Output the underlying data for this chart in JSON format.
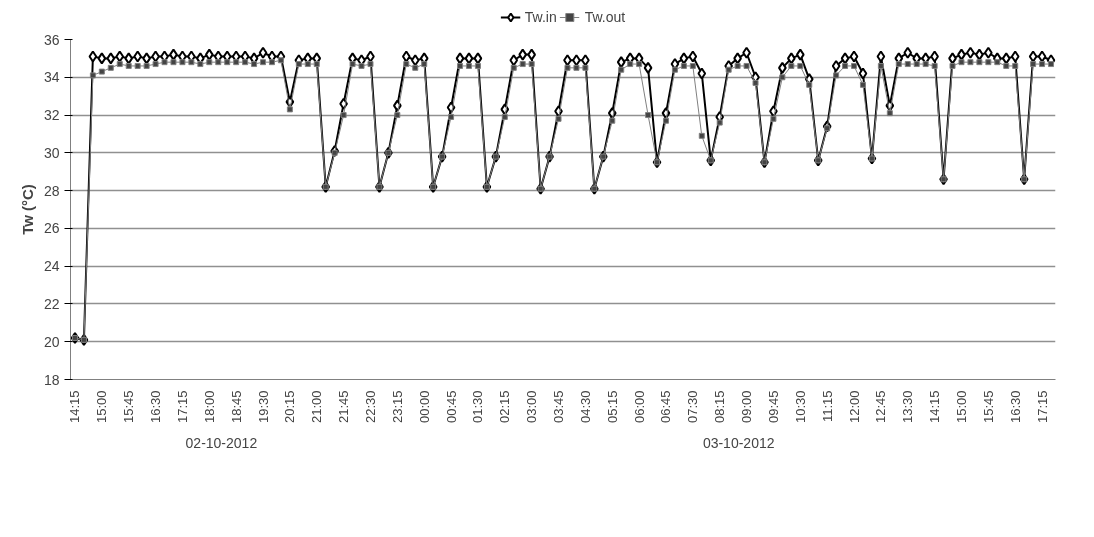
{
  "chart_data": {
    "type": "line",
    "ylabel": "Tw (°C)",
    "categories": [
      "14:15",
      null,
      null,
      "15:00",
      null,
      null,
      "15:45",
      null,
      null,
      "16:30",
      null,
      null,
      "17:15",
      null,
      null,
      "18:00",
      null,
      null,
      "18:45",
      null,
      null,
      "19:30",
      null,
      null,
      "20:15",
      null,
      null,
      "21:00",
      null,
      null,
      "21:45",
      null,
      null,
      "22:30",
      null,
      null,
      "23:15",
      null,
      null,
      "00:00",
      null,
      null,
      "00:45",
      null,
      null,
      "01:30",
      null,
      null,
      "02:15",
      null,
      null,
      "03:00",
      null,
      null,
      "03:45",
      null,
      null,
      "04:30",
      null,
      null,
      "05:15",
      null,
      null,
      "06:00",
      null,
      null,
      "06:45",
      null,
      null,
      "07:30",
      null,
      null,
      "08:15",
      null,
      null,
      "09:00",
      null,
      null,
      "09:45",
      null,
      null,
      "10:30",
      null,
      null,
      "11:15",
      null,
      null,
      "12:00",
      null,
      null,
      "12:45",
      null,
      null,
      "13:30",
      null,
      null,
      "14:15",
      null,
      null,
      "15:00",
      null,
      null,
      "15:45",
      null,
      null,
      "16:30",
      null,
      null,
      "17:15",
      null
    ],
    "series": [
      {
        "name": "Tw.in",
        "color": "#000000",
        "marker": "diamond",
        "values": [
          20.2,
          20.1,
          35.1,
          35.0,
          35.0,
          35.1,
          35.0,
          35.1,
          35.0,
          35.1,
          35.1,
          35.2,
          35.1,
          35.1,
          35.0,
          35.2,
          35.1,
          35.1,
          35.1,
          35.1,
          35.0,
          35.3,
          35.1,
          35.1,
          32.7,
          34.9,
          35.0,
          35.0,
          28.2,
          30.1,
          32.6,
          35.0,
          34.9,
          35.1,
          28.2,
          30.0,
          32.5,
          35.1,
          34.9,
          35.0,
          28.2,
          29.8,
          32.4,
          35.0,
          35.0,
          35.0,
          28.2,
          29.8,
          32.3,
          34.9,
          35.2,
          35.2,
          28.1,
          29.8,
          32.2,
          34.9,
          34.9,
          34.9,
          28.1,
          29.8,
          32.1,
          34.8,
          35.0,
          35.0,
          34.5,
          29.5,
          32.1,
          34.7,
          35.0,
          35.1,
          34.2,
          29.6,
          31.9,
          34.6,
          35.0,
          35.3,
          34.0,
          29.5,
          32.2,
          34.5,
          35.0,
          35.2,
          33.9,
          29.6,
          31.4,
          34.6,
          35.0,
          35.1,
          34.2,
          29.7,
          35.1,
          32.5,
          35.0,
          35.3,
          35.0,
          35.0,
          35.1,
          28.6,
          35.0,
          35.2,
          35.3,
          35.2,
          35.3,
          35.0,
          35.0,
          35.1,
          28.6,
          35.1,
          35.1,
          34.9
        ]
      },
      {
        "name": "Tw.out",
        "color": "#808080",
        "marker": "square",
        "values": [
          20.2,
          20.1,
          34.1,
          34.3,
          34.5,
          34.7,
          34.6,
          34.6,
          34.6,
          34.7,
          34.8,
          34.8,
          34.8,
          34.8,
          34.7,
          34.8,
          34.8,
          34.8,
          34.8,
          34.8,
          34.7,
          34.8,
          34.8,
          34.9,
          32.3,
          34.7,
          34.7,
          34.7,
          28.2,
          30.0,
          32.0,
          34.7,
          34.6,
          34.7,
          28.2,
          30.0,
          32.0,
          34.7,
          34.5,
          34.7,
          28.2,
          29.8,
          31.9,
          34.6,
          34.6,
          34.6,
          28.2,
          29.8,
          31.9,
          34.5,
          34.7,
          34.7,
          28.1,
          29.8,
          31.8,
          34.5,
          34.5,
          34.5,
          28.1,
          29.8,
          31.7,
          34.4,
          34.7,
          34.7,
          32.0,
          29.5,
          31.7,
          34.4,
          34.6,
          34.6,
          30.9,
          29.6,
          31.6,
          34.4,
          34.6,
          34.6,
          33.7,
          29.5,
          31.8,
          34.0,
          34.6,
          34.6,
          33.6,
          29.6,
          31.3,
          34.1,
          34.6,
          34.6,
          33.6,
          29.7,
          34.6,
          32.1,
          34.7,
          34.7,
          34.7,
          34.7,
          34.6,
          28.6,
          34.6,
          34.8,
          34.8,
          34.8,
          34.8,
          34.8,
          34.6,
          34.6,
          28.6,
          34.7,
          34.7,
          34.7
        ]
      }
    ],
    "ylim": [
      18,
      36
    ],
    "yticks": [
      18,
      20,
      22,
      24,
      26,
      28,
      30,
      32,
      34,
      36
    ],
    "grid": "y",
    "legend": "top",
    "line_style": "solid",
    "annotations": [
      "02-10-2012",
      "03-10-2012"
    ]
  }
}
